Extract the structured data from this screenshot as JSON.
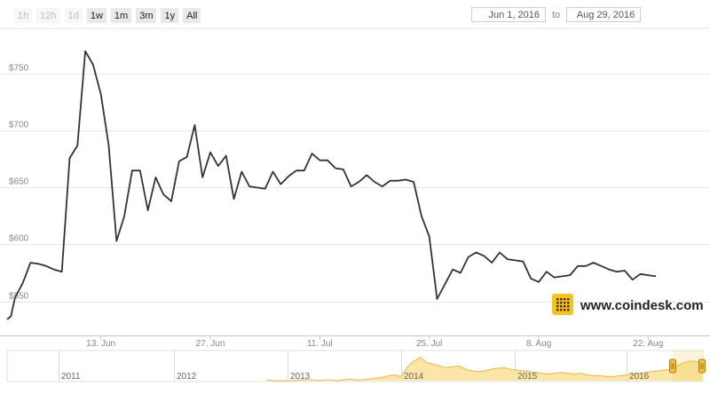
{
  "toolbar": {
    "zoom_buttons": [
      {
        "label": "1h",
        "enabled": false
      },
      {
        "label": "12h",
        "enabled": false
      },
      {
        "label": "1d",
        "enabled": false
      },
      {
        "label": "1w",
        "enabled": true
      },
      {
        "label": "1m",
        "enabled": true
      },
      {
        "label": "3m",
        "enabled": true
      },
      {
        "label": "1y",
        "enabled": true
      },
      {
        "label": "All",
        "enabled": true
      }
    ],
    "from_date": "Jun 1, 2016",
    "to_label": "to",
    "to_date": "Aug 29, 2016"
  },
  "watermark": "www.coindesk.com",
  "colors": {
    "line": "#333333",
    "navigator_fill": "#fbe6a7",
    "navigator_line": "#e8b84a",
    "handle": "#f5c342",
    "grid": "#e6e6e6",
    "logo": "#f4c31f"
  },
  "chart_data": {
    "type": "line",
    "title": "",
    "xlabel": "",
    "ylabel": "",
    "x_range": [
      "2016-06-01",
      "2016-08-29"
    ],
    "ylim": [
      520,
      790
    ],
    "y_ticks": [
      550,
      600,
      650,
      700,
      750
    ],
    "y_tick_labels": [
      "$550",
      "$600",
      "$650",
      "$700",
      "$750"
    ],
    "x_tick_labels": [
      "13. Jun",
      "27. Jun",
      "11. Jul",
      "25. Jul",
      "8. Aug",
      "22. Aug"
    ],
    "grid": true,
    "series": [
      {
        "points": [
          [
            "2016-06-01",
            534
          ],
          [
            "2016-06-01 12:00",
            537
          ],
          [
            "2016-06-02",
            553
          ],
          [
            "2016-06-03",
            566
          ],
          [
            "2016-06-04",
            584
          ],
          [
            "2016-06-05",
            583
          ],
          [
            "2016-06-06",
            581
          ],
          [
            "2016-06-07",
            578
          ],
          [
            "2016-06-08",
            576
          ],
          [
            "2016-06-09",
            676
          ],
          [
            "2016-06-10",
            687
          ],
          [
            "2016-06-11",
            770
          ],
          [
            "2016-06-12",
            758
          ],
          [
            "2016-06-13",
            732
          ],
          [
            "2016-06-14",
            687
          ],
          [
            "2016-06-15",
            603
          ],
          [
            "2016-06-16",
            625
          ],
          [
            "2016-06-17",
            665
          ],
          [
            "2016-06-18",
            665
          ],
          [
            "2016-06-19",
            630
          ],
          [
            "2016-06-20",
            659
          ],
          [
            "2016-06-21",
            644
          ],
          [
            "2016-06-22",
            638
          ],
          [
            "2016-06-23",
            673
          ],
          [
            "2016-06-24",
            677
          ],
          [
            "2016-06-25",
            705
          ],
          [
            "2016-06-26",
            659
          ],
          [
            "2016-06-27",
            681
          ],
          [
            "2016-06-28",
            669
          ],
          [
            "2016-06-29",
            678
          ],
          [
            "2016-06-30",
            640
          ],
          [
            "2016-07-01",
            664
          ],
          [
            "2016-07-02",
            651
          ],
          [
            "2016-07-03",
            650
          ],
          [
            "2016-07-04",
            649
          ],
          [
            "2016-07-05",
            664
          ],
          [
            "2016-07-06",
            653
          ],
          [
            "2016-07-07",
            660
          ],
          [
            "2016-07-08",
            665
          ],
          [
            "2016-07-09",
            665
          ],
          [
            "2016-07-10",
            680
          ],
          [
            "2016-07-11",
            674
          ],
          [
            "2016-07-12",
            674
          ],
          [
            "2016-07-13",
            667
          ],
          [
            "2016-07-14",
            666
          ],
          [
            "2016-07-15",
            651
          ],
          [
            "2016-07-16",
            655
          ],
          [
            "2016-07-17",
            661
          ],
          [
            "2016-07-18",
            655
          ],
          [
            "2016-07-19",
            651
          ],
          [
            "2016-07-20",
            656
          ],
          [
            "2016-07-21",
            656
          ],
          [
            "2016-07-22",
            657
          ],
          [
            "2016-07-23",
            655
          ],
          [
            "2016-07-24",
            625
          ],
          [
            "2016-07-25",
            607
          ],
          [
            "2016-07-26",
            552
          ],
          [
            "2016-07-27",
            565
          ],
          [
            "2016-07-28",
            578
          ],
          [
            "2016-07-29",
            575
          ],
          [
            "2016-07-30",
            589
          ],
          [
            "2016-07-31",
            593
          ],
          [
            "2016-08-01",
            590
          ],
          [
            "2016-08-02",
            584
          ],
          [
            "2016-08-03",
            593
          ],
          [
            "2016-08-04",
            587
          ],
          [
            "2016-08-05",
            586
          ],
          [
            "2016-08-06",
            585
          ],
          [
            "2016-08-07",
            570
          ],
          [
            "2016-08-08",
            567
          ],
          [
            "2016-08-09",
            576
          ],
          [
            "2016-08-10",
            571
          ],
          [
            "2016-08-11",
            572
          ],
          [
            "2016-08-12",
            573
          ],
          [
            "2016-08-13",
            581
          ],
          [
            "2016-08-14",
            581
          ],
          [
            "2016-08-15",
            584
          ],
          [
            "2016-08-16",
            581
          ],
          [
            "2016-08-17",
            578
          ],
          [
            "2016-08-18",
            576
          ],
          [
            "2016-08-19",
            577
          ],
          [
            "2016-08-20",
            569
          ],
          [
            "2016-08-21",
            574
          ],
          [
            "2016-08-22",
            573
          ],
          [
            "2016-08-23",
            572
          ]
        ]
      }
    ],
    "navigator": {
      "year_labels": [
        "2011",
        "2012",
        "2013",
        "2014",
        "2015",
        "2016"
      ],
      "profile": [
        1,
        0,
        0,
        0,
        0,
        1,
        1,
        1,
        0,
        1,
        1,
        0,
        1,
        2,
        1,
        1,
        2,
        3,
        4,
        6,
        7,
        5,
        17,
        24,
        28,
        22,
        20,
        18,
        16,
        17,
        18,
        14,
        12,
        11,
        12,
        14,
        15,
        16,
        14,
        13,
        12,
        11,
        10,
        9,
        8,
        9,
        10,
        9,
        8,
        9,
        7,
        6,
        6,
        5,
        5,
        6,
        7,
        8,
        9,
        10,
        11,
        12,
        13,
        14,
        18,
        22,
        24,
        23,
        22
      ]
    }
  }
}
